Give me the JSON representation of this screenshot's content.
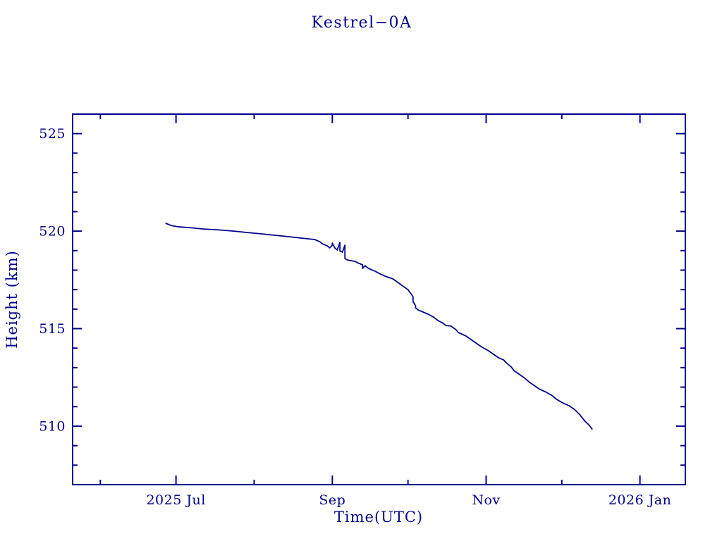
{
  "colors": {
    "background": "#ffffff",
    "axis": "#00008B",
    "line": "#00008B",
    "text": "#00008B"
  },
  "chart_data": {
    "type": "line",
    "title": "Kestrel−0A",
    "xlabel": "Time(UTC)",
    "ylabel": "Height (km)",
    "x_range": [
      "2025-05-21",
      "2026-01-19"
    ],
    "ylim": [
      507,
      526
    ],
    "grid": false,
    "legend": "none",
    "x_major_ticks": [
      {
        "date": "2025-07-01",
        "label": "2025 Jul"
      },
      {
        "date": "2025-09-01",
        "label": "Sep"
      },
      {
        "date": "2025-11-01",
        "label": "Nov"
      },
      {
        "date": "2026-01-01",
        "label": "2026 Jan"
      }
    ],
    "x_minor_ticks": [
      "2025-06-01",
      "2025-08-01",
      "2025-10-01",
      "2025-12-01"
    ],
    "y_major_ticks": [
      510,
      515,
      520,
      525
    ],
    "y_minor_step": 1,
    "series": [
      {
        "name": "height",
        "points": [
          [
            "2025-06-27",
            520.4
          ],
          [
            "2025-06-29",
            520.29
          ],
          [
            "2025-07-02",
            520.22
          ],
          [
            "2025-07-07",
            520.17
          ],
          [
            "2025-07-12",
            520.11
          ],
          [
            "2025-07-18",
            520.06
          ],
          [
            "2025-07-24",
            520.0
          ],
          [
            "2025-07-29",
            519.93
          ],
          [
            "2025-08-04",
            519.86
          ],
          [
            "2025-08-09",
            519.79
          ],
          [
            "2025-08-15",
            519.71
          ],
          [
            "2025-08-20",
            519.64
          ],
          [
            "2025-08-25",
            519.57
          ],
          [
            "2025-08-27",
            519.46
          ],
          [
            "2025-08-28",
            519.35
          ],
          [
            "2025-08-30",
            519.24
          ],
          [
            "2025-08-31",
            519.14
          ],
          [
            "2025-09-01",
            519.28
          ],
          [
            "2025-09-01",
            519.39
          ],
          [
            "2025-09-02",
            519.14
          ],
          [
            "2025-09-03",
            519.03
          ],
          [
            "2025-09-03",
            519.06
          ],
          [
            "2025-09-04",
            519.42
          ],
          [
            "2025-09-04",
            518.99
          ],
          [
            "2025-09-05",
            518.92
          ],
          [
            "2025-09-06",
            519.28
          ],
          [
            "2025-09-06",
            518.59
          ],
          [
            "2025-09-07",
            518.52
          ],
          [
            "2025-09-08",
            518.49
          ],
          [
            "2025-09-10",
            518.45
          ],
          [
            "2025-09-11",
            518.38
          ],
          [
            "2025-09-13",
            518.27
          ],
          [
            "2025-09-13",
            518.09
          ],
          [
            "2025-09-14",
            518.23
          ],
          [
            "2025-09-15",
            518.12
          ],
          [
            "2025-09-16",
            518.05
          ],
          [
            "2025-09-18",
            517.94
          ],
          [
            "2025-09-20",
            517.8
          ],
          [
            "2025-09-22",
            517.69
          ],
          [
            "2025-09-25",
            517.55
          ],
          [
            "2025-09-27",
            517.37
          ],
          [
            "2025-09-29",
            517.18
          ],
          [
            "2025-10-01",
            517.0
          ],
          [
            "2025-10-02",
            516.82
          ],
          [
            "2025-10-03",
            516.64
          ],
          [
            "2025-10-03",
            516.39
          ],
          [
            "2025-10-04",
            516.17
          ],
          [
            "2025-10-04",
            516.07
          ],
          [
            "2025-10-05",
            515.96
          ],
          [
            "2025-10-07",
            515.85
          ],
          [
            "2025-10-09",
            515.74
          ],
          [
            "2025-10-11",
            515.6
          ],
          [
            "2025-10-13",
            515.41
          ],
          [
            "2025-10-15",
            515.27
          ],
          [
            "2025-10-16",
            515.16
          ],
          [
            "2025-10-18",
            515.13
          ],
          [
            "2025-10-20",
            514.95
          ],
          [
            "2025-10-21",
            514.8
          ],
          [
            "2025-10-24",
            514.62
          ],
          [
            "2025-10-26",
            514.44
          ],
          [
            "2025-10-28",
            514.26
          ],
          [
            "2025-10-30",
            514.08
          ],
          [
            "2025-11-02",
            513.86
          ],
          [
            "2025-11-04",
            513.68
          ],
          [
            "2025-11-06",
            513.5
          ],
          [
            "2025-11-08",
            513.39
          ],
          [
            "2025-11-09",
            513.25
          ],
          [
            "2025-11-11",
            513.03
          ],
          [
            "2025-11-12",
            512.85
          ],
          [
            "2025-11-14",
            512.67
          ],
          [
            "2025-11-16",
            512.49
          ],
          [
            "2025-11-18",
            512.27
          ],
          [
            "2025-11-20",
            512.09
          ],
          [
            "2025-11-22",
            511.91
          ],
          [
            "2025-11-25",
            511.73
          ],
          [
            "2025-11-27",
            511.58
          ],
          [
            "2025-11-29",
            511.37
          ],
          [
            "2025-12-01",
            511.22
          ],
          [
            "2025-12-04",
            511.04
          ],
          [
            "2025-12-06",
            510.86
          ],
          [
            "2025-12-08",
            510.61
          ],
          [
            "2025-12-10",
            510.28
          ],
          [
            "2025-12-12",
            510.03
          ],
          [
            "2025-12-13",
            509.85
          ]
        ]
      }
    ]
  }
}
